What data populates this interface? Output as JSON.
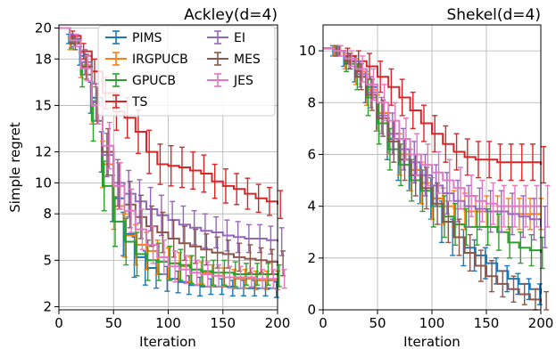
{
  "chart_data": [
    {
      "type": "line",
      "title": "Ackley(d=4)",
      "xlabel": "Iteration",
      "ylabel": "Simple regret",
      "xlim": [
        0,
        200
      ],
      "ylim": [
        1.8,
        20.2
      ],
      "x_ticks": [
        0,
        50,
        100,
        150,
        200
      ],
      "y_ticks": [
        2,
        5,
        8,
        10,
        12,
        15,
        18,
        20
      ],
      "y_tick_labels": [
        "2",
        "5",
        "8",
        "10",
        "12",
        "15",
        "18",
        "20"
      ],
      "grid": true,
      "legend": "top-center",
      "series": [
        {
          "name": "PIMS",
          "color": "#1f77b4",
          "x": [
            0,
            10,
            20,
            30,
            40,
            50,
            60,
            70,
            80,
            90,
            100,
            110,
            120,
            130,
            140,
            150,
            160,
            170,
            180,
            190,
            200
          ],
          "y": [
            20.0,
            19.3,
            18.2,
            15.5,
            12.0,
            9.0,
            6.7,
            5.2,
            4.5,
            4.1,
            3.8,
            3.6,
            3.4,
            3.3,
            3.3,
            3.3,
            3.2,
            3.2,
            3.2,
            3.2,
            3.1
          ],
          "err": [
            0,
            0.3,
            0.6,
            1.0,
            1.3,
            1.5,
            1.4,
            1.3,
            1.1,
            0.9,
            0.8,
            0.7,
            0.6,
            0.6,
            0.5,
            0.5,
            0.5,
            0.5,
            0.5,
            0.5,
            0.5
          ]
        },
        {
          "name": "IRGPUCB",
          "color": "#ff7f0e",
          "x": [
            0,
            10,
            20,
            30,
            40,
            50,
            60,
            70,
            80,
            90,
            100,
            110,
            120,
            130,
            140,
            150,
            160,
            170,
            180,
            190,
            200
          ],
          "y": [
            20.0,
            19.0,
            17.6,
            15.0,
            11.2,
            8.5,
            6.6,
            6.0,
            5.6,
            5.2,
            4.8,
            4.6,
            4.4,
            4.2,
            4.0,
            3.9,
            3.8,
            3.8,
            3.7,
            3.7,
            3.7
          ],
          "err": [
            0,
            0.4,
            0.8,
            1.2,
            1.5,
            1.5,
            1.4,
            1.3,
            1.2,
            1.1,
            1.0,
            0.9,
            0.8,
            0.7,
            0.7,
            0.6,
            0.6,
            0.6,
            0.6,
            0.6,
            0.6
          ]
        },
        {
          "name": "GPUCB",
          "color": "#2ca02c",
          "x": [
            0,
            10,
            20,
            30,
            40,
            50,
            60,
            70,
            80,
            90,
            100,
            110,
            120,
            130,
            140,
            150,
            160,
            170,
            180,
            190,
            200
          ],
          "y": [
            20.0,
            19.1,
            17.0,
            14.0,
            9.8,
            7.5,
            6.2,
            5.4,
            5.0,
            4.9,
            4.8,
            4.7,
            4.4,
            4.3,
            4.2,
            4.2,
            4.1,
            4.1,
            4.1,
            4.1,
            4.0
          ],
          "err": [
            0,
            0.4,
            0.8,
            1.3,
            1.6,
            1.6,
            1.5,
            1.4,
            1.3,
            1.2,
            1.1,
            1.0,
            0.9,
            0.9,
            0.8,
            0.8,
            0.8,
            0.7,
            0.7,
            0.7,
            0.7
          ]
        },
        {
          "name": "TS",
          "color": "#d62728",
          "x": [
            0,
            10,
            20,
            30,
            40,
            50,
            60,
            70,
            80,
            90,
            100,
            110,
            120,
            130,
            140,
            150,
            160,
            170,
            180,
            190,
            200
          ],
          "y": [
            20.0,
            19.5,
            18.5,
            17.2,
            15.8,
            14.6,
            14.2,
            13.3,
            12.0,
            11.2,
            11.1,
            11.0,
            10.8,
            10.6,
            10.1,
            9.8,
            9.6,
            9.3,
            9.0,
            8.8,
            8.6
          ],
          "err": [
            0,
            0.3,
            0.5,
            0.8,
            1.0,
            1.2,
            1.3,
            1.4,
            1.4,
            1.3,
            1.3,
            1.3,
            1.2,
            1.2,
            1.1,
            1.1,
            1.0,
            1.0,
            0.9,
            0.9,
            0.9
          ]
        },
        {
          "name": "EI",
          "color": "#9467bd",
          "x": [
            0,
            10,
            20,
            30,
            40,
            50,
            60,
            70,
            80,
            90,
            100,
            110,
            120,
            130,
            140,
            150,
            160,
            170,
            180,
            190,
            200
          ],
          "y": [
            20.0,
            19.2,
            17.8,
            15.2,
            11.8,
            10.0,
            9.3,
            8.8,
            8.3,
            7.9,
            7.6,
            7.3,
            7.1,
            6.9,
            6.8,
            6.6,
            6.5,
            6.4,
            6.4,
            6.3,
            6.2
          ],
          "err": [
            0,
            0.4,
            0.8,
            1.2,
            1.4,
            1.5,
            1.5,
            1.4,
            1.4,
            1.3,
            1.2,
            1.2,
            1.1,
            1.1,
            1.0,
            1.0,
            1.0,
            0.9,
            0.9,
            0.9,
            0.9
          ]
        },
        {
          "name": "MES",
          "color": "#8c564b",
          "x": [
            0,
            10,
            20,
            30,
            40,
            50,
            60,
            70,
            80,
            90,
            100,
            110,
            120,
            130,
            140,
            150,
            160,
            170,
            180,
            190,
            200
          ],
          "y": [
            20.0,
            19.0,
            17.5,
            15.0,
            12.0,
            9.8,
            8.6,
            7.8,
            7.2,
            6.8,
            6.4,
            6.1,
            5.9,
            5.7,
            5.5,
            5.4,
            5.2,
            5.1,
            5.0,
            4.9,
            4.8
          ],
          "err": [
            0,
            0.4,
            0.8,
            1.2,
            1.5,
            1.5,
            1.5,
            1.4,
            1.3,
            1.3,
            1.2,
            1.1,
            1.1,
            1.0,
            1.0,
            0.9,
            0.9,
            0.9,
            0.8,
            0.8,
            0.8
          ]
        },
        {
          "name": "JES",
          "color": "#e377c2",
          "x": [
            0,
            10,
            20,
            30,
            40,
            50,
            60,
            70,
            80,
            90,
            100,
            110,
            120,
            130,
            140,
            150,
            160,
            170,
            180,
            190,
            200
          ],
          "y": [
            20.0,
            19.2,
            17.4,
            15.0,
            12.4,
            9.8,
            8.2,
            7.0,
            6.0,
            5.2,
            4.6,
            4.4,
            4.2,
            4.1,
            4.0,
            3.9,
            3.9,
            3.9,
            3.8,
            3.8,
            3.8
          ],
          "err": [
            0,
            0.4,
            0.8,
            1.2,
            1.5,
            1.5,
            1.4,
            1.3,
            1.2,
            1.1,
            1.0,
            0.9,
            0.8,
            0.8,
            0.7,
            0.7,
            0.7,
            0.6,
            0.6,
            0.6,
            0.6
          ]
        }
      ]
    },
    {
      "type": "line",
      "title": "Shekel(d=4)",
      "xlabel": "Iteration",
      "ylabel": "",
      "xlim": [
        0,
        200
      ],
      "ylim": [
        0,
        11
      ],
      "x_ticks": [
        0,
        50,
        100,
        150,
        200
      ],
      "y_ticks": [
        0,
        2,
        4,
        6,
        8,
        10
      ],
      "y_tick_labels": [
        "0",
        "2",
        "4",
        "6",
        "8",
        "10"
      ],
      "grid": true,
      "legend": "none",
      "series": [
        {
          "name": "PIMS",
          "color": "#1f77b4",
          "x": [
            0,
            10,
            20,
            30,
            40,
            50,
            60,
            70,
            80,
            90,
            100,
            110,
            120,
            130,
            140,
            150,
            160,
            170,
            180,
            190,
            200
          ],
          "y": [
            10.1,
            10.0,
            9.7,
            9.3,
            8.6,
            7.6,
            6.6,
            5.8,
            5.4,
            4.9,
            4.3,
            3.4,
            2.8,
            2.4,
            2.1,
            1.8,
            1.5,
            1.2,
            1.0,
            0.8,
            0.6
          ],
          "err": [
            0,
            0.2,
            0.3,
            0.5,
            0.6,
            0.7,
            0.8,
            0.8,
            0.8,
            0.8,
            0.8,
            0.8,
            0.7,
            0.7,
            0.6,
            0.6,
            0.5,
            0.5,
            0.4,
            0.4,
            0.4
          ]
        },
        {
          "name": "IRGPUCB",
          "color": "#ff7f0e",
          "x": [
            0,
            10,
            20,
            30,
            40,
            50,
            60,
            70,
            80,
            90,
            100,
            110,
            120,
            130,
            140,
            150,
            160,
            170,
            180,
            190,
            200
          ],
          "y": [
            10.1,
            10.0,
            9.6,
            9.2,
            8.5,
            7.6,
            6.8,
            6.0,
            5.4,
            4.9,
            4.3,
            4.0,
            3.9,
            3.8,
            3.8,
            3.8,
            3.8,
            3.7,
            3.7,
            3.7,
            3.7
          ],
          "err": [
            0,
            0.2,
            0.3,
            0.5,
            0.6,
            0.7,
            0.8,
            0.8,
            0.8,
            0.8,
            0.8,
            0.7,
            0.7,
            0.7,
            0.6,
            0.6,
            0.6,
            0.6,
            0.6,
            0.6,
            0.6
          ]
        },
        {
          "name": "GPUCB",
          "color": "#2ca02c",
          "x": [
            0,
            10,
            20,
            30,
            40,
            50,
            60,
            70,
            80,
            90,
            100,
            110,
            120,
            130,
            140,
            150,
            160,
            170,
            180,
            190,
            200
          ],
          "y": [
            10.1,
            10.0,
            9.5,
            9.0,
            8.2,
            7.2,
            6.2,
            5.6,
            5.0,
            4.6,
            4.0,
            3.6,
            3.3,
            3.2,
            3.2,
            3.2,
            3.0,
            2.6,
            2.4,
            2.3,
            2.2
          ],
          "err": [
            0,
            0.2,
            0.3,
            0.5,
            0.7,
            0.8,
            0.8,
            0.8,
            0.8,
            0.8,
            0.8,
            0.8,
            0.8,
            0.7,
            0.7,
            0.7,
            0.7,
            0.6,
            0.6,
            0.6,
            0.6
          ]
        },
        {
          "name": "TS",
          "color": "#d62728",
          "x": [
            0,
            10,
            20,
            30,
            40,
            50,
            60,
            70,
            80,
            90,
            100,
            110,
            120,
            130,
            140,
            150,
            160,
            170,
            180,
            190,
            200
          ],
          "y": [
            10.1,
            10.0,
            9.8,
            9.6,
            9.4,
            9.0,
            8.6,
            8.2,
            7.7,
            7.2,
            6.8,
            6.4,
            6.1,
            5.9,
            5.8,
            5.8,
            5.7,
            5.7,
            5.7,
            5.7,
            5.6
          ],
          "err": [
            0,
            0.2,
            0.3,
            0.4,
            0.5,
            0.6,
            0.7,
            0.7,
            0.7,
            0.7,
            0.7,
            0.7,
            0.7,
            0.7,
            0.7,
            0.7,
            0.7,
            0.7,
            0.7,
            0.7,
            0.7
          ]
        },
        {
          "name": "EI",
          "color": "#9467bd",
          "x": [
            0,
            10,
            20,
            30,
            40,
            50,
            60,
            70,
            80,
            90,
            100,
            110,
            120,
            130,
            140,
            150,
            160,
            170,
            180,
            190,
            200
          ],
          "y": [
            10.1,
            10.0,
            9.6,
            9.1,
            8.4,
            7.5,
            6.8,
            6.2,
            5.7,
            5.2,
            4.8,
            4.5,
            4.2,
            4.0,
            3.9,
            3.8,
            3.8,
            3.7,
            3.6,
            3.5,
            3.2
          ],
          "err": [
            0,
            0.2,
            0.3,
            0.5,
            0.6,
            0.7,
            0.8,
            0.8,
            0.8,
            0.8,
            0.8,
            0.8,
            0.8,
            0.8,
            0.8,
            0.8,
            0.8,
            0.8,
            0.8,
            0.8,
            0.8
          ]
        },
        {
          "name": "MES",
          "color": "#8c564b",
          "x": [
            0,
            10,
            20,
            30,
            40,
            50,
            60,
            70,
            80,
            90,
            100,
            110,
            120,
            130,
            140,
            150,
            160,
            170,
            180,
            190,
            200
          ],
          "y": [
            10.1,
            10.0,
            9.6,
            9.0,
            8.3,
            7.4,
            6.5,
            5.8,
            5.2,
            4.7,
            4.1,
            3.4,
            2.8,
            2.2,
            1.7,
            1.3,
            1.0,
            0.8,
            0.6,
            0.4,
            0.3
          ],
          "err": [
            0,
            0.2,
            0.3,
            0.5,
            0.6,
            0.7,
            0.8,
            0.8,
            0.8,
            0.8,
            0.8,
            0.8,
            0.7,
            0.7,
            0.6,
            0.6,
            0.5,
            0.5,
            0.4,
            0.4,
            0.4
          ]
        },
        {
          "name": "JES",
          "color": "#e377c2",
          "x": [
            0,
            10,
            20,
            30,
            40,
            50,
            60,
            70,
            80,
            90,
            100,
            110,
            120,
            130,
            140,
            150,
            160,
            170,
            180,
            190,
            200
          ],
          "y": [
            10.1,
            10.0,
            9.7,
            9.3,
            8.7,
            8.0,
            7.3,
            6.6,
            6.0,
            5.6,
            5.3,
            5.0,
            4.7,
            4.4,
            4.2,
            4.1,
            4.0,
            4.0,
            4.0,
            4.0,
            4.0
          ],
          "err": [
            0,
            0.2,
            0.3,
            0.5,
            0.6,
            0.7,
            0.7,
            0.8,
            0.8,
            0.8,
            0.8,
            0.8,
            0.8,
            0.8,
            0.8,
            0.8,
            0.8,
            0.8,
            0.8,
            0.8,
            0.8
          ]
        }
      ]
    }
  ]
}
